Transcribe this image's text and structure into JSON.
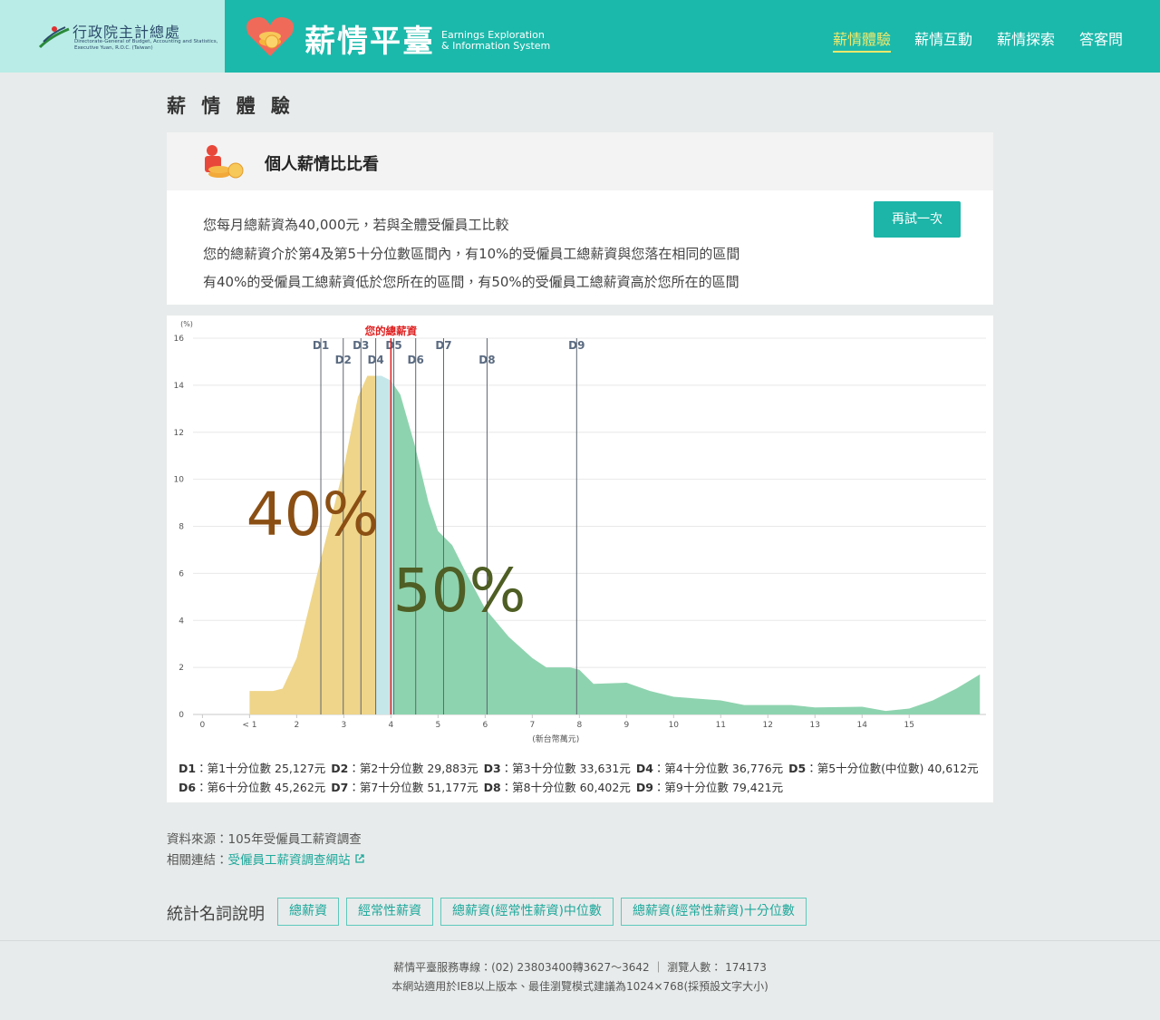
{
  "header": {
    "org_name": "行政院主計總處",
    "org_en": [
      "Directorate-General of Budget, Accounting and Statistics,",
      "Executive Yuan, R.O.C. (Taiwan)"
    ],
    "site_name": "薪情平臺",
    "site_en": [
      "Earnings Exploration",
      "& Information System"
    ],
    "nav": [
      "薪情體驗",
      "薪情互動",
      "薪情探索",
      "答客問"
    ]
  },
  "page_title": "薪 情 體 驗",
  "card": {
    "title": "個人薪情比比看",
    "lines": [
      "您每月總薪資為40,000元，若與全體受僱員工比較",
      "您的總薪資介於第4及第5十分位數區間內，有10%的受僱員工總薪資與您落在相同的區間",
      "有40%的受僱員工總薪資低於您所在的區間，有50%的受僱員工總薪資高於您所在的區間"
    ],
    "button": "再試一次"
  },
  "chart_data": {
    "type": "area",
    "y_label": "(%)",
    "x_label": "(新台幣萬元)",
    "x": [
      1,
      1.5,
      1.7,
      2,
      2.5,
      3,
      3.3,
      3.5,
      3.8,
      4,
      4.2,
      4.5,
      4.8,
      5,
      5.3,
      5.6,
      6,
      6.5,
      7,
      7.3,
      7.8,
      8,
      8.3,
      9,
      9.5,
      10,
      11,
      11.5,
      12.5,
      13,
      14,
      14.5,
      15,
      15.5,
      16,
      16.5
    ],
    "values": [
      1.0,
      1.0,
      1.1,
      2.4,
      6.5,
      10.5,
      13.5,
      14.4,
      14.4,
      14.2,
      13.6,
      11.5,
      9.0,
      7.8,
      7.2,
      6.0,
      4.5,
      3.3,
      2.4,
      2.0,
      2.0,
      1.9,
      1.3,
      1.35,
      1.0,
      0.75,
      0.6,
      0.4,
      0.4,
      0.3,
      0.33,
      0.15,
      0.25,
      0.6,
      1.1,
      1.7
    ],
    "fill_colors": [
      "#efd58a",
      "#c6e7ea",
      "#8ed3af"
    ],
    "xlim": [
      -0.2,
      16.63
    ],
    "ylim": [
      0,
      16
    ],
    "xticks": [
      0,
      {
        "value": 1,
        "label": "< 1"
      },
      2,
      3,
      4,
      5,
      6,
      7,
      8,
      9,
      10,
      11,
      12,
      13,
      14,
      15
    ],
    "yticks": [
      0,
      2,
      4,
      6,
      8,
      10,
      12,
      14,
      16
    ],
    "grid": true,
    "marker": {
      "label": "您的總薪資",
      "value": 4,
      "color": "#e02020"
    },
    "annotations": [
      {
        "text": "40%",
        "color": "#8b4f14"
      },
      {
        "text": "50%",
        "color": "#4e5e24"
      }
    ],
    "deciles": [
      {
        "name": "D1",
        "desc": "：第1十分位數",
        "value": 2.5127,
        "value_label": "25,127元"
      },
      {
        "name": "D2",
        "desc": "：第2十分位數",
        "value": 2.9883,
        "value_label": "29,883元"
      },
      {
        "name": "D3",
        "desc": "：第3十分位數",
        "value": 3.3631,
        "value_label": "33,631元"
      },
      {
        "name": "D4",
        "desc": "：第4十分位數",
        "value": 3.6776,
        "value_label": "36,776元"
      },
      {
        "name": "D5",
        "desc": "：第5十分位數(中位數)",
        "value": 4.0612,
        "value_label": "40,612元"
      },
      {
        "name": "D6",
        "desc": "：第6十分位數",
        "value": 4.5262,
        "value_label": "45,262元"
      },
      {
        "name": "D7",
        "desc": "：第7十分位數",
        "value": 5.1177,
        "value_label": "51,177元"
      },
      {
        "name": "D8",
        "desc": "：第8十分位數",
        "value": 6.0402,
        "value_label": "60,402元"
      },
      {
        "name": "D9",
        "desc": "：第9十分位數",
        "value": 7.9421,
        "value_label": "79,421元"
      }
    ]
  },
  "source": {
    "data_source": "資料來源：105年受僱員工薪資調查",
    "link_label": "相關連結：",
    "link_text": "受僱員工薪資調查網站"
  },
  "terms": {
    "label": "統計名詞說明",
    "items": [
      "總薪資",
      "經常性薪資",
      "總薪資(經常性薪資)中位數",
      "總薪資(經常性薪資)十分位數"
    ]
  },
  "footer": [
    "薪情平臺服務專線：(02) 23803400轉3627～3642 ｜ 瀏覽人數： 174173",
    "本網站適用於IE8以上版本、最佳瀏覽模式建議為1024×768(採預設文字大小)"
  ]
}
